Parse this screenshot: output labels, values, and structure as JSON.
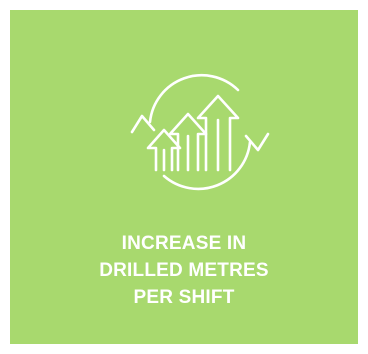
{
  "tile": {
    "background": "#a8d96e",
    "foreground": "#ffffff",
    "icon": "growth-arrows-cycle-icon",
    "caption_lines": [
      "INCREASE IN",
      "DRILLED METRES",
      "PER SHIFT"
    ]
  }
}
